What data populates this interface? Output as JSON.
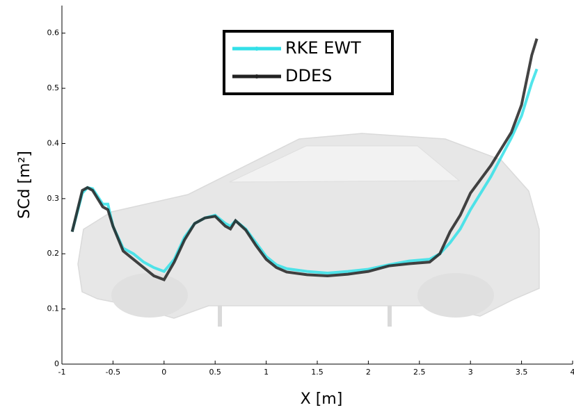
{
  "chart_data": {
    "type": "line",
    "xlabel": "X [m]",
    "ylabel": "SCd [m²]",
    "x": [
      -0.9,
      -0.8,
      -0.75,
      -0.7,
      -0.6,
      -0.55,
      -0.5,
      -0.4,
      -0.3,
      -0.2,
      -0.1,
      0,
      0.1,
      0.2,
      0.3,
      0.4,
      0.5,
      0.6,
      0.65,
      0.7,
      0.8,
      0.9,
      1.0,
      1.1,
      1.2,
      1.4,
      1.6,
      1.8,
      2.0,
      2.2,
      2.4,
      2.6,
      2.7,
      2.8,
      2.9,
      3.0,
      3.2,
      3.4,
      3.5,
      3.6,
      3.65
    ],
    "series": [
      {
        "name": "RKE EWT",
        "color": "#33e0e8",
        "values": [
          0.24,
          0.31,
          0.32,
          0.318,
          0.29,
          0.29,
          0.25,
          0.21,
          0.2,
          0.185,
          0.175,
          0.168,
          0.19,
          0.23,
          0.255,
          0.265,
          0.27,
          0.255,
          0.25,
          0.26,
          0.245,
          0.22,
          0.195,
          0.18,
          0.173,
          0.168,
          0.165,
          0.168,
          0.172,
          0.18,
          0.187,
          0.19,
          0.2,
          0.22,
          0.245,
          0.28,
          0.34,
          0.41,
          0.45,
          0.51,
          0.535
        ]
      },
      {
        "name": "DDES",
        "color": "#222222",
        "values": [
          0.24,
          0.315,
          0.32,
          0.315,
          0.285,
          0.28,
          0.25,
          0.205,
          0.19,
          0.175,
          0.16,
          0.153,
          0.185,
          0.225,
          0.255,
          0.265,
          0.268,
          0.25,
          0.245,
          0.26,
          0.243,
          0.215,
          0.19,
          0.175,
          0.167,
          0.162,
          0.16,
          0.163,
          0.168,
          0.178,
          0.182,
          0.185,
          0.2,
          0.24,
          0.27,
          0.31,
          0.36,
          0.42,
          0.47,
          0.56,
          0.59
        ]
      }
    ],
    "xlim": [
      -1,
      4
    ],
    "ylim": [
      0,
      0.65
    ],
    "xticks": [
      -1,
      -0.5,
      0,
      0.5,
      1,
      1.5,
      2,
      2.5,
      3,
      3.5,
      4
    ],
    "yticks": [
      0,
      0.1,
      0.2,
      0.3,
      0.4,
      0.5,
      0.6
    ]
  }
}
